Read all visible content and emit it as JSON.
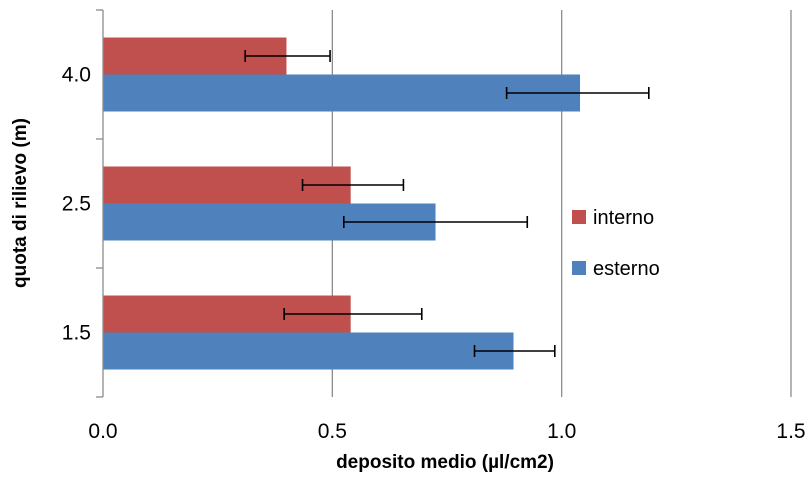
{
  "chart_data": {
    "type": "bar",
    "orientation": "horizontal",
    "categories": [
      "1.5",
      "2.5",
      "4.0"
    ],
    "series": [
      {
        "name": "interno",
        "color": "#c0504d",
        "values": [
          0.54,
          0.54,
          0.4
        ],
        "error_low": [
          0.395,
          0.435,
          0.31
        ],
        "error_high": [
          0.695,
          0.655,
          0.495
        ]
      },
      {
        "name": "esterno",
        "color": "#4f81bd",
        "values": [
          0.895,
          0.725,
          1.04
        ],
        "error_low": [
          0.81,
          0.525,
          0.88
        ],
        "error_high": [
          0.985,
          0.925,
          1.19
        ]
      }
    ],
    "xlabel": "deposito medio (µl/cm2)",
    "ylabel": "quota di rilievo (m)",
    "xlim": [
      0,
      1.5
    ],
    "xticks": [
      "0.0",
      "0.5",
      "1.0",
      "1.5"
    ],
    "grid": "vertical",
    "legend_position": "right"
  }
}
